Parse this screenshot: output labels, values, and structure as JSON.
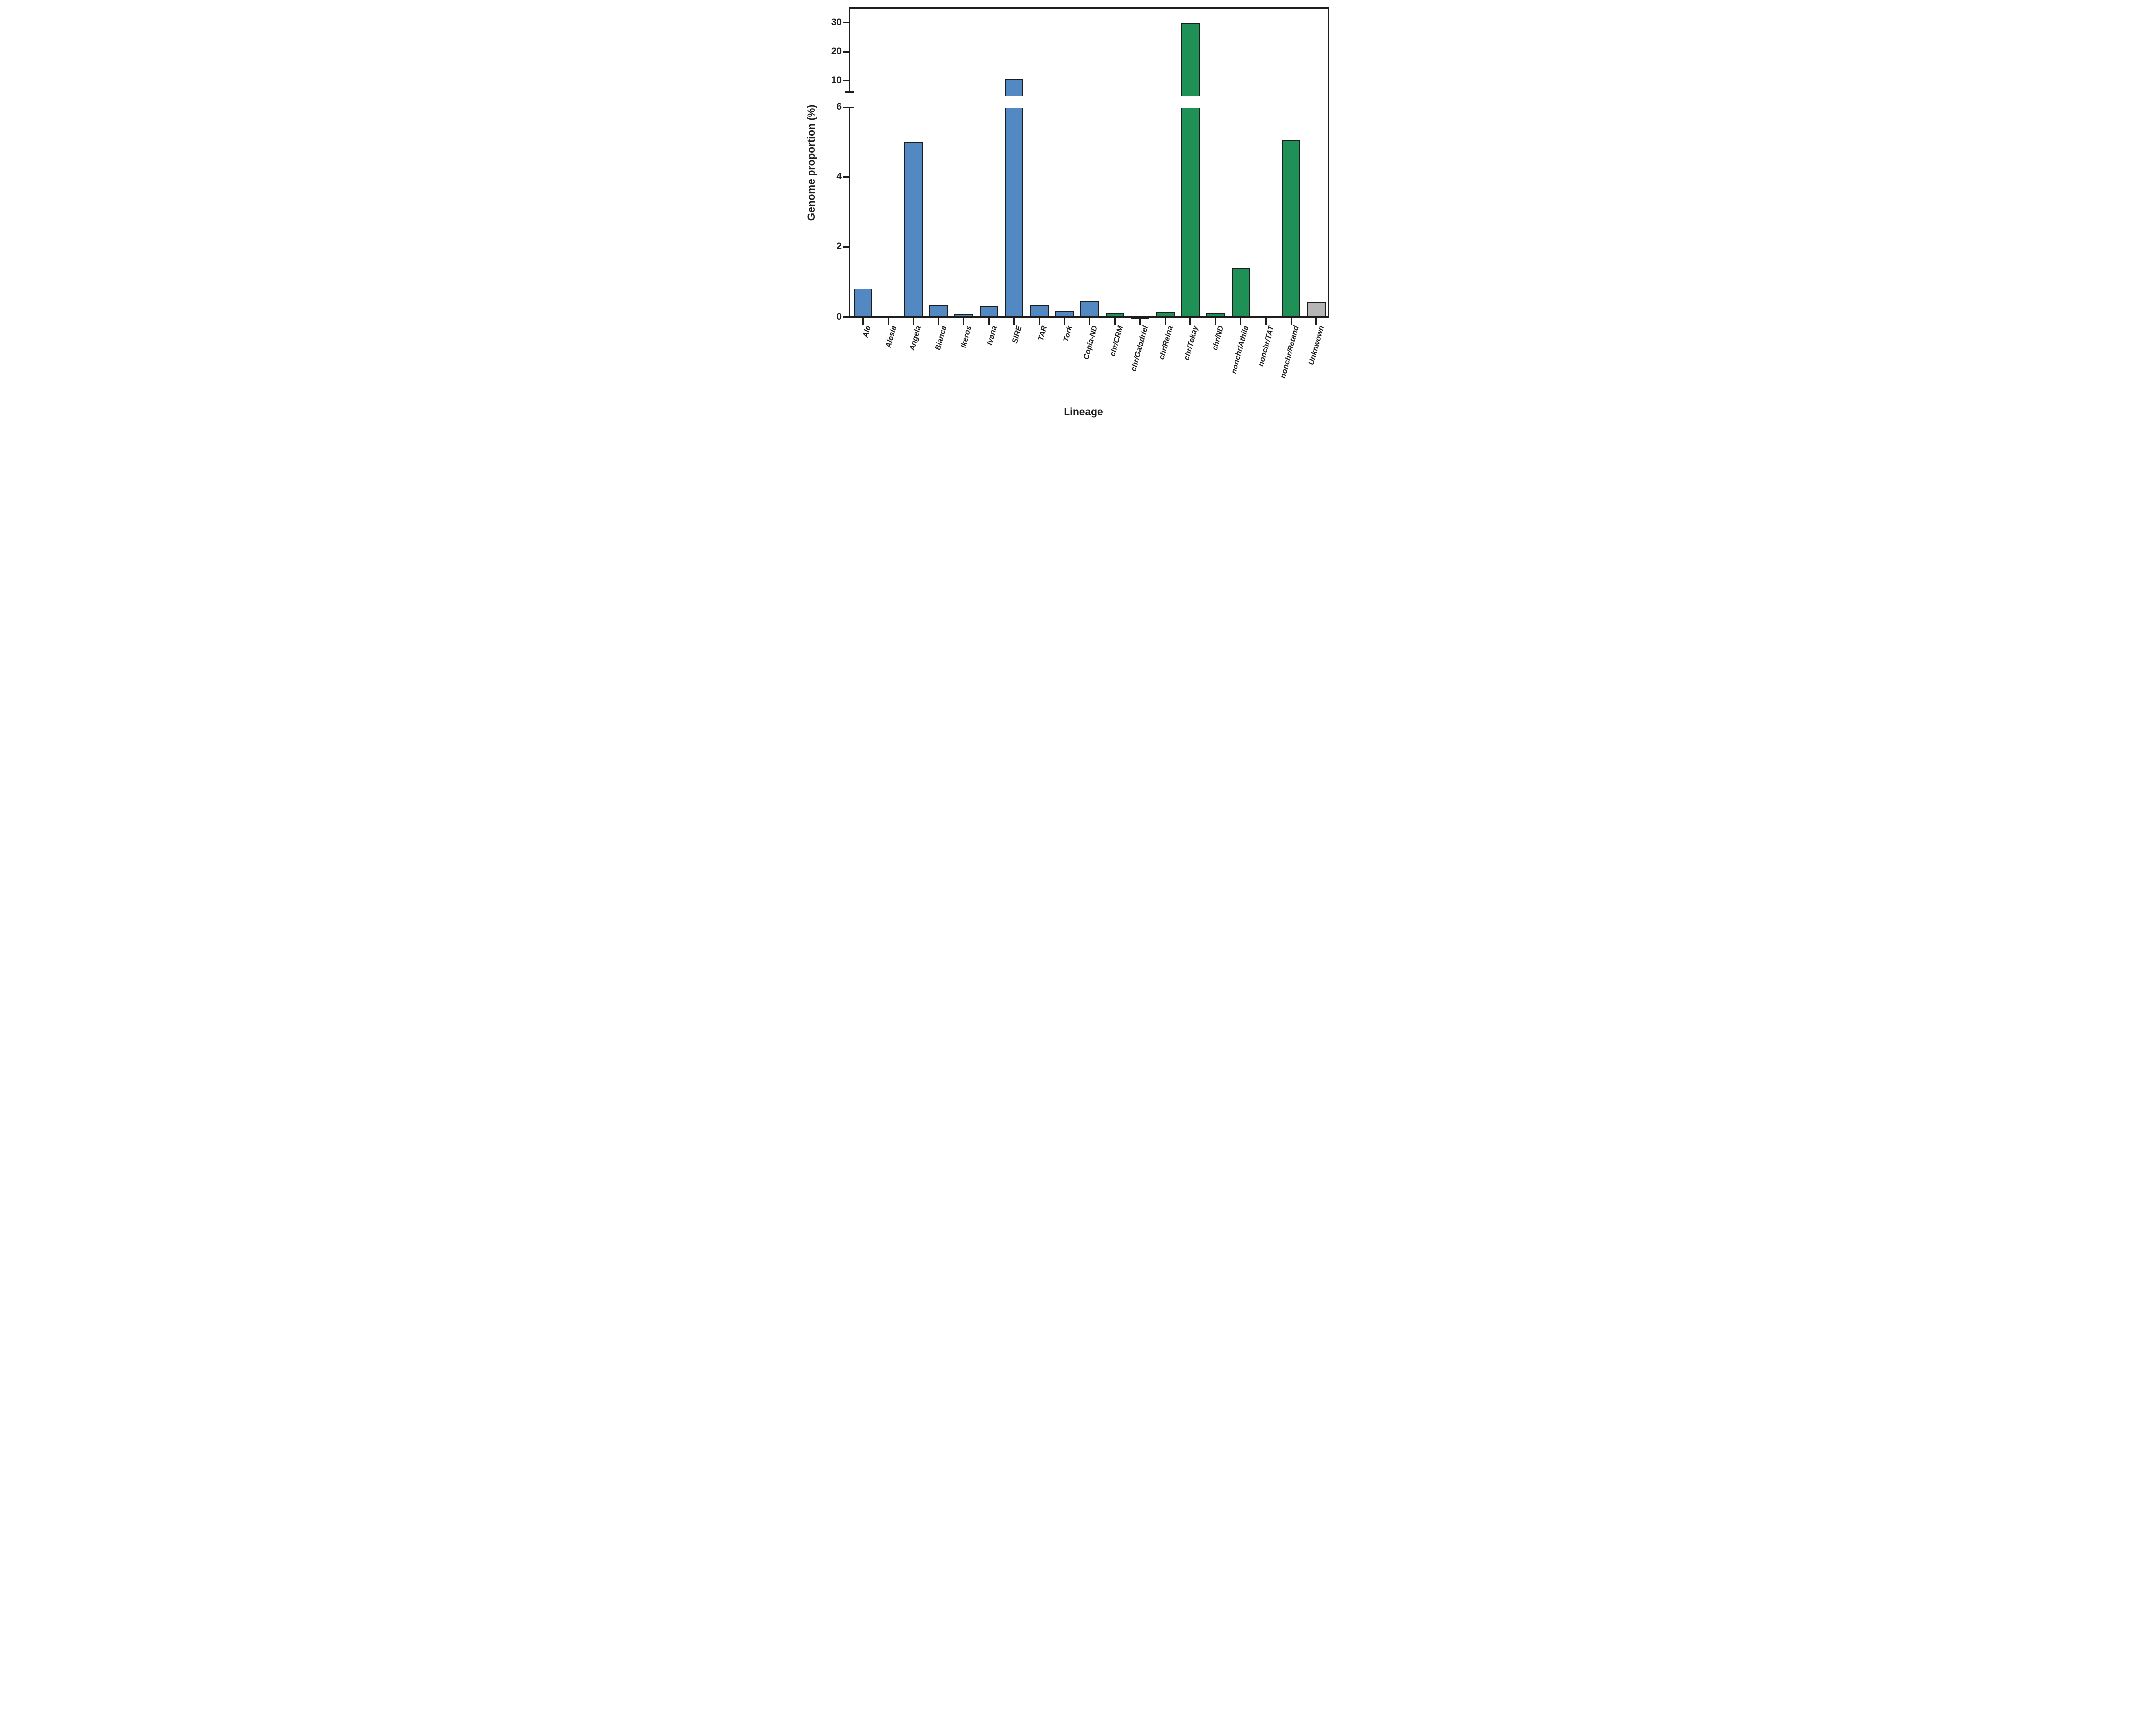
{
  "chart_data": {
    "type": "bar",
    "title": "",
    "xlabel": "Lineage",
    "ylabel": "Genome proportion (%)",
    "grid": false,
    "legend": "none",
    "axis": {
      "y_break": true,
      "lower_range": [
        0,
        6
      ],
      "upper_range": [
        6,
        35
      ],
      "lower_ticks": [
        0,
        2,
        4,
        6
      ],
      "upper_ticks": [
        10,
        20,
        30
      ],
      "lower_tick_labels": [
        "0",
        "2",
        "4",
        "6"
      ],
      "upper_tick_labels": [
        "10",
        "20",
        "30"
      ]
    },
    "categories": [
      "Ale",
      "Alesia",
      "Angela",
      "Bianca",
      "Ikeros",
      "Ivana",
      "SIRE",
      "TAR",
      "Tork",
      "Copia-ND",
      "chr/CRM",
      "chr/Galadriel",
      "chr/Reina",
      "chr/Tekay",
      "chr/ND",
      "nonchr/Athila",
      "nonchr/TAT",
      "nonchr/Retand",
      "Unknwown"
    ],
    "values": [
      0.82,
      0.04,
      5.0,
      0.35,
      0.08,
      0.3,
      10.5,
      0.35,
      0.17,
      0.45,
      0.12,
      0.01,
      0.13,
      30,
      0.1,
      1.4,
      0.04,
      5.05,
      0.42
    ],
    "groups": [
      "copia",
      "copia",
      "copia",
      "copia",
      "copia",
      "copia",
      "copia",
      "copia",
      "copia",
      "copia",
      "gypsy",
      "gypsy",
      "gypsy",
      "gypsy",
      "gypsy",
      "gypsy",
      "gypsy",
      "gypsy",
      "unknown"
    ],
    "group_colors": {
      "copia": "#5389c2",
      "gypsy": "#1f9156",
      "unknown": "#b5b5b5"
    },
    "outline_color": "#1d1d1d"
  }
}
